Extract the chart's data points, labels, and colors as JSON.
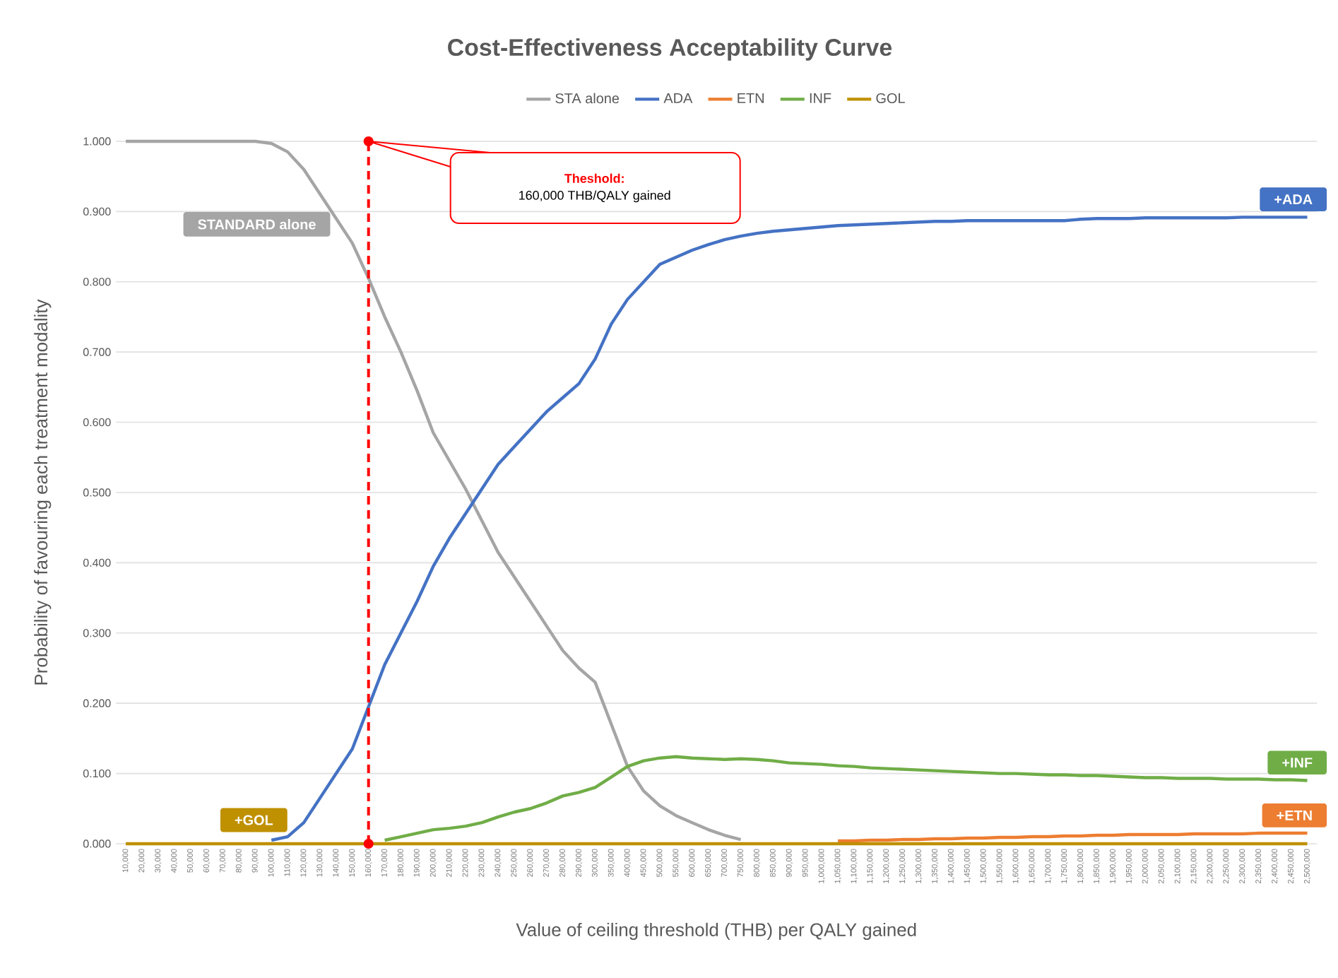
{
  "chart_data": {
    "type": "line",
    "title": "Cost-Effectiveness Acceptability Curve",
    "xlabel": "Value of ceiling threshold (THB) per QALY gained",
    "ylabel": "Probability of favouring each treatment modality",
    "categories": [
      "10,000",
      "20,000",
      "30,000",
      "40,000",
      "50,000",
      "60,000",
      "70,000",
      "80,000",
      "90,000",
      "100,000",
      "110,000",
      "120,000",
      "130,000",
      "140,000",
      "150,000",
      "160,000",
      "170,000",
      "180,000",
      "190,000",
      "200,000",
      "210,000",
      "220,000",
      "230,000",
      "240,000",
      "250,000",
      "260,000",
      "270,000",
      "280,000",
      "290,000",
      "300,000",
      "350,000",
      "400,000",
      "450,000",
      "500,000",
      "550,000",
      "600,000",
      "650,000",
      "700,000",
      "750,000",
      "800,000",
      "850,000",
      "900,000",
      "950,000",
      "1,000,000",
      "1,050,000",
      "1,100,000",
      "1,150,000",
      "1,200,000",
      "1,250,000",
      "1,300,000",
      "1,350,000",
      "1,400,000",
      "1,450,000",
      "1,500,000",
      "1,550,000",
      "1,600,000",
      "1,650,000",
      "1,700,000",
      "1,750,000",
      "1,800,000",
      "1,850,000",
      "1,900,000",
      "1,950,000",
      "2,000,000",
      "2,050,000",
      "2,100,000",
      "2,150,000",
      "2,200,000",
      "2,250,000",
      "2,300,000",
      "2,350,000",
      "2,400,000",
      "2,450,000",
      "2,500,000"
    ],
    "series": [
      {
        "name": "STA alone",
        "color": "#a5a5a5",
        "values": [
          1.0,
          1.0,
          1.0,
          1.0,
          1.0,
          1.0,
          1.0,
          1.0,
          1.0,
          0.997,
          0.985,
          0.96,
          0.925,
          0.89,
          0.855,
          0.805,
          0.75,
          0.7,
          0.645,
          0.585,
          0.545,
          0.505,
          0.46,
          0.415,
          0.38,
          0.345,
          0.31,
          0.275,
          0.25,
          0.23,
          0.17,
          0.11,
          0.075,
          0.054,
          0.04,
          0.03,
          0.02,
          0.012,
          0.006,
          null,
          null,
          null,
          null,
          null,
          null,
          null,
          null,
          null,
          null,
          null,
          null,
          null,
          null,
          null,
          null,
          null,
          null,
          null,
          null,
          null,
          null,
          null,
          null,
          null,
          null,
          null,
          null,
          null,
          null,
          null,
          null,
          null,
          null,
          null
        ]
      },
      {
        "name": "ADA",
        "color": "#4472c4",
        "values": [
          null,
          null,
          null,
          null,
          null,
          null,
          null,
          null,
          null,
          0.005,
          0.01,
          0.03,
          0.065,
          0.1,
          0.135,
          0.195,
          0.255,
          0.3,
          0.345,
          0.395,
          0.435,
          0.47,
          0.505,
          0.54,
          0.565,
          0.59,
          0.615,
          0.635,
          0.655,
          0.69,
          0.74,
          0.775,
          0.8,
          0.825,
          0.835,
          0.845,
          0.853,
          0.86,
          0.865,
          0.869,
          0.872,
          0.874,
          0.876,
          0.878,
          0.88,
          0.881,
          0.882,
          0.883,
          0.884,
          0.885,
          0.886,
          0.886,
          0.887,
          0.887,
          0.887,
          0.887,
          0.887,
          0.887,
          0.887,
          0.889,
          0.89,
          0.89,
          0.89,
          0.891,
          0.891,
          0.891,
          0.891,
          0.891,
          0.891,
          0.892,
          0.892,
          0.892,
          0.892,
          0.892
        ]
      },
      {
        "name": "ETN",
        "color": "#ed7d31",
        "values": [
          null,
          null,
          null,
          null,
          null,
          null,
          null,
          null,
          null,
          null,
          null,
          null,
          null,
          null,
          null,
          null,
          null,
          null,
          null,
          null,
          null,
          null,
          null,
          null,
          null,
          null,
          null,
          null,
          null,
          null,
          null,
          null,
          null,
          null,
          null,
          null,
          null,
          null,
          null,
          null,
          null,
          null,
          null,
          null,
          0.004,
          0.004,
          0.005,
          0.005,
          0.006,
          0.006,
          0.007,
          0.007,
          0.008,
          0.008,
          0.009,
          0.009,
          0.01,
          0.01,
          0.011,
          0.011,
          0.012,
          0.012,
          0.013,
          0.013,
          0.013,
          0.013,
          0.014,
          0.014,
          0.014,
          0.014,
          0.015,
          0.015,
          0.015,
          0.015
        ]
      },
      {
        "name": "INF",
        "color": "#70ad47",
        "values": [
          null,
          null,
          null,
          null,
          null,
          null,
          null,
          null,
          null,
          null,
          null,
          null,
          null,
          null,
          null,
          null,
          0.005,
          0.01,
          0.015,
          0.02,
          0.022,
          0.025,
          0.03,
          0.038,
          0.045,
          0.05,
          0.058,
          0.068,
          0.073,
          0.08,
          0.095,
          0.11,
          0.118,
          0.122,
          0.124,
          0.122,
          0.121,
          0.12,
          0.121,
          0.12,
          0.118,
          0.115,
          0.114,
          0.113,
          0.111,
          0.11,
          0.108,
          0.107,
          0.106,
          0.105,
          0.104,
          0.103,
          0.102,
          0.101,
          0.1,
          0.1,
          0.099,
          0.098,
          0.098,
          0.097,
          0.097,
          0.096,
          0.095,
          0.094,
          0.094,
          0.093,
          0.093,
          0.093,
          0.092,
          0.092,
          0.092,
          0.091,
          0.091,
          0.09
        ]
      },
      {
        "name": "GOL",
        "color": "#bf9000",
        "values": [
          0,
          0,
          0,
          0,
          0,
          0,
          0,
          0,
          0,
          0,
          0,
          0,
          0,
          0,
          0,
          0,
          0,
          0,
          0,
          0,
          0,
          0,
          0,
          0,
          0,
          0,
          0,
          0,
          0,
          0,
          0,
          0,
          0,
          0,
          0,
          0,
          0,
          0,
          0,
          0,
          0,
          0,
          0,
          0,
          0,
          0,
          0,
          0,
          0,
          0,
          0,
          0,
          0,
          0,
          0,
          0,
          0,
          0,
          0,
          0,
          0,
          0,
          0,
          0,
          0,
          0,
          0,
          0,
          0,
          0,
          0,
          0,
          0,
          0
        ]
      }
    ],
    "ylim": [
      0,
      1.0
    ],
    "yticks": [
      {
        "value": 0,
        "label": "0.000"
      },
      {
        "value": 0.1,
        "label": "0.100"
      },
      {
        "value": 0.2,
        "label": "0.200"
      },
      {
        "value": 0.3,
        "label": "0.300"
      },
      {
        "value": 0.4,
        "label": "0.400"
      },
      {
        "value": 0.5,
        "label": "0.500"
      },
      {
        "value": 0.6,
        "label": "0.600"
      },
      {
        "value": 0.7,
        "label": "0.700"
      },
      {
        "value": 0.8,
        "label": "0.800"
      },
      {
        "value": 0.9,
        "label": "0.900"
      },
      {
        "value": 1.0,
        "label": "1.000"
      }
    ],
    "grid": "y",
    "legend": "top",
    "ref_lines": [
      {
        "axis": "x",
        "value": "160,000",
        "color": "#ff0000",
        "line_style": "dashed"
      }
    ],
    "annotations": [
      "Theshold:",
      "160,000 THB/QALY gained",
      {
        "text": "STANDARD alone",
        "x": "140,000",
        "y": 0.89
      },
      {
        "text": "+ADA",
        "x": "2,500,000",
        "y": 0.892
      },
      {
        "text": "+INF",
        "x": "2,500,000",
        "y": 0.09
      },
      {
        "text": "+ETN",
        "x": "2,500,000",
        "y": 0.015
      },
      {
        "text": "+GOL",
        "x": "110,000",
        "y": 0
      }
    ]
  }
}
